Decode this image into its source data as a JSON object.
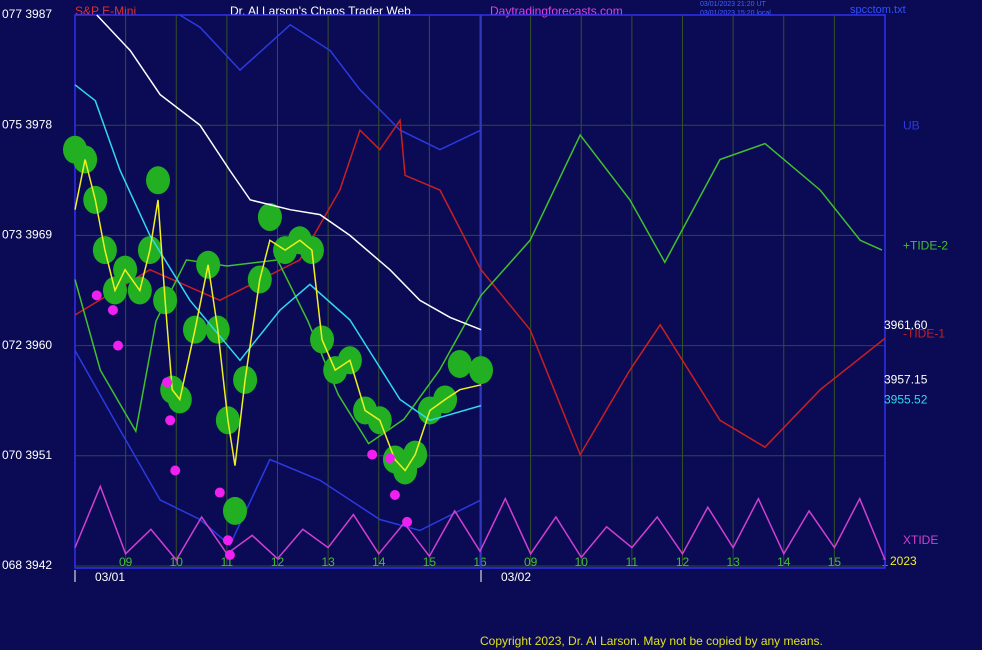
{
  "header": {
    "symbol": "S&P E-Mini",
    "site": "Dr. Al Larson's Chaos Trader Web",
    "url": "Daytradingforecasts.com",
    "stamp1": "03/01/2023 21:20 UT",
    "stamp2": "03/01/2023 15:20 local",
    "file": "spcctom.txt"
  },
  "footer": {
    "copyright": "Copyright 2023, Dr. Al Larson. May not be copied by any means."
  },
  "chart_data": {
    "type": "line",
    "xlim": [
      0,
      16
    ],
    "ylim": [
      3942,
      3987
    ],
    "yticks": [
      {
        "value": 3987,
        "label": "077  3987"
      },
      {
        "value": 3978,
        "label": "075  3978"
      },
      {
        "value": 3969,
        "label": "073  3969"
      },
      {
        "value": 3960,
        "label": "072  3960"
      },
      {
        "value": 3951,
        "label": "070  3951"
      },
      {
        "value": 3942,
        "label": "068  3942"
      }
    ],
    "xticks": [
      {
        "value": 1,
        "label": "09"
      },
      {
        "value": 2,
        "label": "10"
      },
      {
        "value": 3,
        "label": "11"
      },
      {
        "value": 4,
        "label": "12"
      },
      {
        "value": 5,
        "label": "13"
      },
      {
        "value": 6,
        "label": "14"
      },
      {
        "value": 7,
        "label": "15"
      },
      {
        "value": 8,
        "label": "16"
      },
      {
        "value": 9,
        "label": "09"
      },
      {
        "value": 10,
        "label": "10"
      },
      {
        "value": 11,
        "label": "11"
      },
      {
        "value": 12,
        "label": "12"
      },
      {
        "value": 13,
        "label": "13"
      },
      {
        "value": 14,
        "label": "14"
      },
      {
        "value": 15,
        "label": "15"
      },
      {
        "value": 16,
        "label": "1"
      }
    ],
    "date_ticks": [
      {
        "value": 0,
        "label": "03/01"
      },
      {
        "value": 8.02,
        "label": "03/02"
      }
    ],
    "now": 8.02,
    "year": "2023",
    "grid": true,
    "series": [
      {
        "name": "UB",
        "color": "#2a3ae0",
        "style": "line",
        "x": [
          2.07,
          2.47,
          3.26,
          4.25,
          5.04,
          5.63,
          6.42,
          7.21,
          8.02
        ],
        "values": [
          3987,
          3986,
          3982.5,
          3986.2,
          3984.1,
          3980.9,
          3977.6,
          3976,
          3977.6
        ]
      },
      {
        "color": "#2a3ae0",
        "style": "line",
        "x": [
          0,
          0.89,
          1.68,
          2.47,
          3.06,
          3.85,
          4.84,
          6.02,
          6.81,
          8.02
        ],
        "values": [
          3959.6,
          3953.1,
          3947.4,
          3945.8,
          3943.7,
          3950.7,
          3949,
          3945.8,
          3944.9,
          3947.4
        ]
      },
      {
        "name": "XTIDE",
        "color": "#d040d0",
        "style": "line",
        "x": [
          0,
          0.5,
          1,
          1.5,
          2,
          2.5,
          3,
          3.5,
          4,
          4.5,
          5,
          5.5,
          6,
          6.5,
          7,
          7.5,
          8,
          8.5,
          9,
          9.5,
          10,
          10.5,
          11,
          11.5,
          12,
          12.5,
          13,
          13.5,
          14,
          14.5,
          15,
          15.5,
          16
        ],
        "values": [
          3943.5,
          3948.5,
          3943,
          3945,
          3942.5,
          3946,
          3943,
          3944.5,
          3942.6,
          3945,
          3943.5,
          3946.2,
          3943,
          3945.5,
          3942.8,
          3946.5,
          3943.2,
          3947.5,
          3943,
          3946,
          3942.7,
          3945.2,
          3943.5,
          3946,
          3943,
          3946.8,
          3943.5,
          3947.5,
          3943,
          3946.5,
          3943.5,
          3947.5,
          3942.5
        ]
      },
      {
        "name": "-TIDE-1",
        "color": "#c82020",
        "style": "line",
        "x": [
          0,
          1.48,
          2.86,
          4.44,
          5.23,
          5.63,
          6.02,
          6.42,
          6.52,
          7.21,
          8.02,
          8.99,
          9.98,
          10.96,
          11.56,
          12.74,
          13.63,
          14.72,
          16
        ],
        "values": [
          3962.5,
          3966.2,
          3963.7,
          3967,
          3972.7,
          3977.6,
          3976,
          3978.4,
          3973.9,
          3972.7,
          3966.2,
          3961.3,
          3951.1,
          3958,
          3961.7,
          3953.9,
          3951.7,
          3956.4,
          3960.6
        ]
      },
      {
        "name": "+TIDE-2",
        "color": "#40c030",
        "style": "line",
        "x": [
          0,
          0.5,
          1.2,
          1.6,
          2.2,
          3,
          4,
          4.6,
          5.2,
          5.8,
          6.5,
          7.2,
          8.02,
          8.99,
          9.98,
          10.96,
          11.65,
          12.74,
          13.63,
          14.72,
          15.51,
          15.94
        ],
        "values": [
          3965.4,
          3958,
          3953,
          3962,
          3967,
          3966.5,
          3967,
          3962,
          3956,
          3952,
          3954,
          3958,
          3964.1,
          3968.6,
          3977.2,
          3971.9,
          3966.8,
          3975.2,
          3976.5,
          3972.7,
          3968.6,
          3967.8
        ]
      },
      {
        "color": "#22b022",
        "style": "blobs",
        "x": [
          0,
          0.2,
          0.4,
          0.59,
          0.79,
          0.99,
          1.28,
          1.48,
          1.64,
          1.78,
          1.92,
          2.07,
          2.37,
          2.63,
          2.82,
          3.02,
          3.16,
          3.36,
          3.65,
          3.85,
          4.15,
          4.44,
          4.68,
          4.88,
          5.14,
          5.43,
          5.73,
          6.02,
          6.32,
          6.52,
          6.72,
          7.01,
          7.31,
          7.6,
          8.02
        ],
        "values": [
          3976,
          3975.2,
          3971.9,
          3967.8,
          3964.5,
          3966.2,
          3964.5,
          3967.8,
          3973.5,
          3963.7,
          3956.4,
          3955.6,
          3961.3,
          3966.6,
          3961.3,
          3953.9,
          3946.5,
          3957.2,
          3965.4,
          3970.5,
          3967.8,
          3968.6,
          3967.8,
          3960.5,
          3958,
          3958.8,
          3954.7,
          3953.9,
          3950.7,
          3949.8,
          3951.1,
          3954.7,
          3955.6,
          3958.5,
          3958
        ]
      },
      {
        "color": "#ffffff",
        "style": "line",
        "x": [
          0.43,
          1.09,
          1.68,
          2.47,
          3.06,
          3.46,
          4.25,
          4.84,
          5.43,
          6.22,
          6.81,
          7.41,
          8.02
        ],
        "values": [
          3987,
          3984.1,
          3980.5,
          3978,
          3974.3,
          3971.9,
          3971.1,
          3970.7,
          3969,
          3966.2,
          3963.7,
          3962.3,
          3961.3
        ]
      },
      {
        "color": "#30d8f0",
        "style": "line",
        "x": [
          0,
          0.4,
          0.89,
          1.48,
          2.27,
          3.26,
          4.05,
          4.64,
          5.43,
          6.42,
          7.01,
          8.02
        ],
        "values": [
          3981.3,
          3980,
          3974.3,
          3969,
          3963.7,
          3958.8,
          3962.9,
          3965,
          3962.1,
          3955.6,
          3953.9,
          3955.1
        ]
      },
      {
        "color": "#f0f020",
        "style": "line",
        "x": [
          0,
          0.2,
          0.4,
          0.59,
          0.79,
          0.99,
          1.28,
          1.48,
          1.64,
          1.78,
          1.92,
          2.07,
          2.37,
          2.63,
          2.82,
          3.02,
          3.16,
          3.36,
          3.65,
          3.85,
          4.15,
          4.44,
          4.68,
          4.88,
          5.14,
          5.43,
          5.73,
          6.02,
          6.32,
          6.52,
          6.72,
          7.01,
          7.31,
          7.6,
          8.02
        ],
        "values": [
          3971.1,
          3975.2,
          3971.9,
          3967.8,
          3964.5,
          3966.2,
          3964.5,
          3967.8,
          3971.9,
          3963.7,
          3956.4,
          3955.6,
          3961.3,
          3966.6,
          3961.3,
          3953.9,
          3950.2,
          3957.2,
          3965.4,
          3968.6,
          3967.8,
          3968.6,
          3967.8,
          3960.5,
          3958,
          3958.8,
          3954.7,
          3953.9,
          3950.7,
          3949.8,
          3951.1,
          3954.7,
          3955.6,
          3956.4,
          3956.8
        ]
      },
      {
        "color": "#f020f0",
        "style": "dots",
        "x": [
          0.43,
          0.75,
          0.85,
          1.82,
          1.88,
          1.98,
          2.86,
          3.02,
          3.06,
          5.87,
          6.22,
          6.32,
          6.56
        ],
        "values": [
          3964.1,
          3962.9,
          3960,
          3957,
          3953.9,
          3949.8,
          3948,
          3944.1,
          3942.9,
          3951.1,
          3950.8,
          3947.8,
          3945.6
        ]
      }
    ],
    "price_labels": [
      {
        "value": 3961.6,
        "label": "3961.60",
        "color": "#ffffff"
      },
      {
        "value": 3957.15,
        "label": "3957.15",
        "color": "#ffffff"
      },
      {
        "value": 3955.52,
        "label": "3955.52",
        "color": "#30d8f0"
      }
    ]
  }
}
